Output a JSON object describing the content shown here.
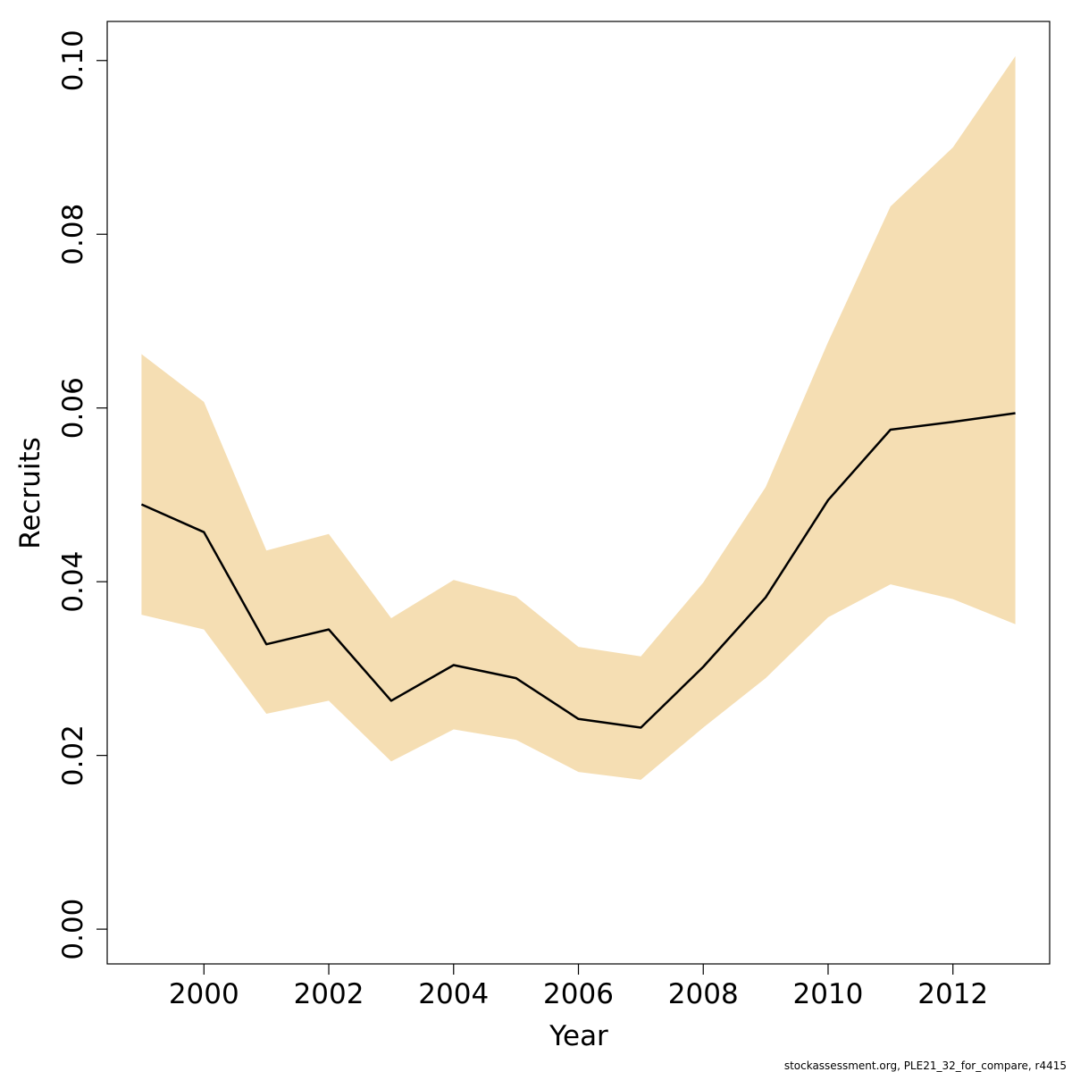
{
  "chart_data": {
    "type": "area",
    "xlabel": "Year",
    "ylabel": "Recruits",
    "xlim": [
      1998.45,
      2013.55
    ],
    "ylim": [
      -0.004,
      0.1045
    ],
    "x_ticks": [
      2000,
      2002,
      2004,
      2006,
      2008,
      2010,
      2012
    ],
    "y_ticks": [
      0.0,
      0.02,
      0.04,
      0.06,
      0.08,
      0.1
    ],
    "y_tick_labels": [
      "0.00",
      "0.02",
      "0.04",
      "0.06",
      "0.08",
      "0.10"
    ],
    "x": [
      1999,
      2000,
      2001,
      2002,
      2003,
      2004,
      2005,
      2006,
      2007,
      2008,
      2009,
      2010,
      2011,
      2012,
      2013
    ],
    "series": [
      {
        "values": [
          0.0489,
          0.0457,
          0.0328,
          0.0345,
          0.0263,
          0.0304,
          0.0289,
          0.0242,
          0.0232,
          0.0302,
          0.0382,
          0.0494,
          0.0575,
          0.0584,
          0.0594
        ],
        "lower": [
          0.0362,
          0.0345,
          0.0248,
          0.0263,
          0.0193,
          0.023,
          0.0218,
          0.0181,
          0.0172,
          0.0232,
          0.0289,
          0.0359,
          0.0397,
          0.038,
          0.0351
        ],
        "upper": [
          0.0662,
          0.0607,
          0.0436,
          0.0455,
          0.0358,
          0.0402,
          0.0383,
          0.0325,
          0.0314,
          0.0399,
          0.0509,
          0.0676,
          0.0832,
          0.09,
          0.1005
        ]
      }
    ],
    "colors": {
      "line": "#000000",
      "band": "#f5deb3",
      "axis": "#000000"
    },
    "grid": false,
    "legend": "none"
  },
  "footer": {
    "text": "stockassessment.org, PLE21_32_for_compare, r4415"
  }
}
